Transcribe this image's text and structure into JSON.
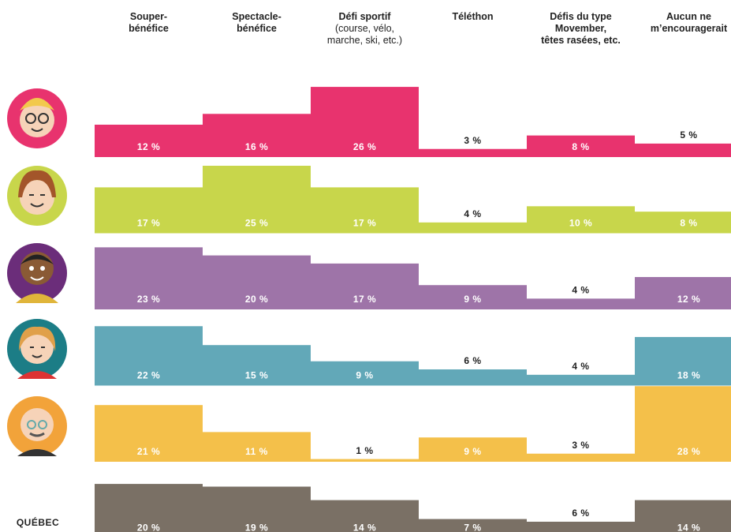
{
  "chart_data": {
    "type": "bar",
    "categories": [
      "Souper-\nbénéfice",
      "Spectacle-\nbénéfice",
      "Défi sportif",
      "Téléthon",
      "Défis du type\nMovember,\ntêtes rasées, etc.",
      "Aucun ne\nm’encouragerait"
    ],
    "category_details": [
      null,
      null,
      "(course, vélo,\nmarche, ski, etc.)",
      null,
      null,
      null
    ],
    "series": [
      {
        "color": "#e8336e",
        "values": [
          12,
          16,
          26,
          3,
          8,
          5
        ],
        "value_labels": [
          "12 %",
          "16 %",
          "26 %",
          "3 %",
          "8 %",
          "5 %"
        ]
      },
      {
        "color": "#c8d64b",
        "values": [
          17,
          25,
          17,
          4,
          10,
          8
        ],
        "value_labels": [
          "17 %",
          "25 %",
          "17 %",
          "4 %",
          "10 %",
          "8 %"
        ]
      },
      {
        "color": "#9e74a8",
        "values": [
          23,
          20,
          17,
          9,
          4,
          12
        ],
        "value_labels": [
          "23 %",
          "20 %",
          "17 %",
          "9 %",
          "4 %",
          "12 %"
        ]
      },
      {
        "color": "#62a8b8",
        "values": [
          22,
          15,
          9,
          6,
          4,
          18
        ],
        "value_labels": [
          "22 %",
          "15 %",
          "9 %",
          "6 %",
          "4 %",
          "18 %"
        ]
      },
      {
        "color": "#f4c04a",
        "values": [
          21,
          11,
          1,
          9,
          3,
          28
        ],
        "value_labels": [
          "21 %",
          "11 %",
          "1 %",
          "9 %",
          "3 %",
          "28 %"
        ]
      },
      {
        "name": "QUÉBEC",
        "color": "#7a7065",
        "values": [
          20,
          19,
          14,
          7,
          6,
          14
        ],
        "value_labels": [
          "20 %",
          "19 %",
          "14 %",
          "7 %",
          "6 %",
          "14 %"
        ]
      }
    ]
  }
}
